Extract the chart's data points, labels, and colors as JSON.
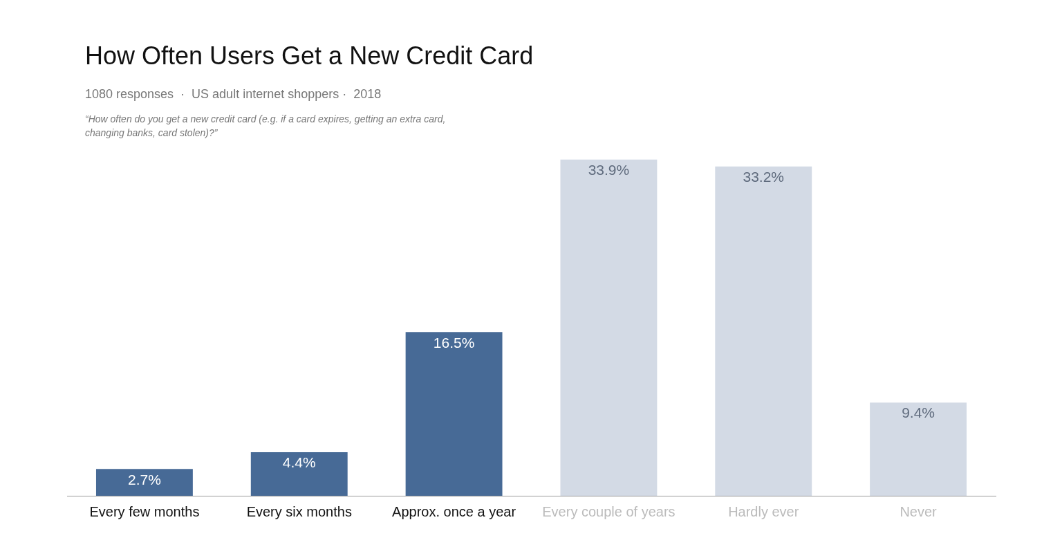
{
  "chart_data": {
    "type": "bar",
    "title": "How Often Users Get a New Credit Card",
    "subtitle": "1080 responses  ·  US adult internet shoppers ·  2018",
    "annotations": [
      "“How often do you get a new credit card (e.g. if a card expires, getting an extra card, changing banks, card stolen)?”"
    ],
    "categories": [
      "Every few months",
      "Every six months",
      "Approx. once a year",
      "Every couple of years",
      "Hardly ever",
      "Never"
    ],
    "values": [
      2.7,
      4.4,
      16.5,
      33.9,
      33.2,
      9.4
    ],
    "colors": [
      "#476a96",
      "#476a96",
      "#476a96",
      "#d3dae5",
      "#d3dae5",
      "#d3dae5"
    ],
    "value_labels": [
      "2.7%",
      "4.4%",
      "16.5%",
      "33.9%",
      "33.2%",
      "9.4%"
    ],
    "grid": false,
    "legend": false,
    "tick_labels": "x"
  }
}
